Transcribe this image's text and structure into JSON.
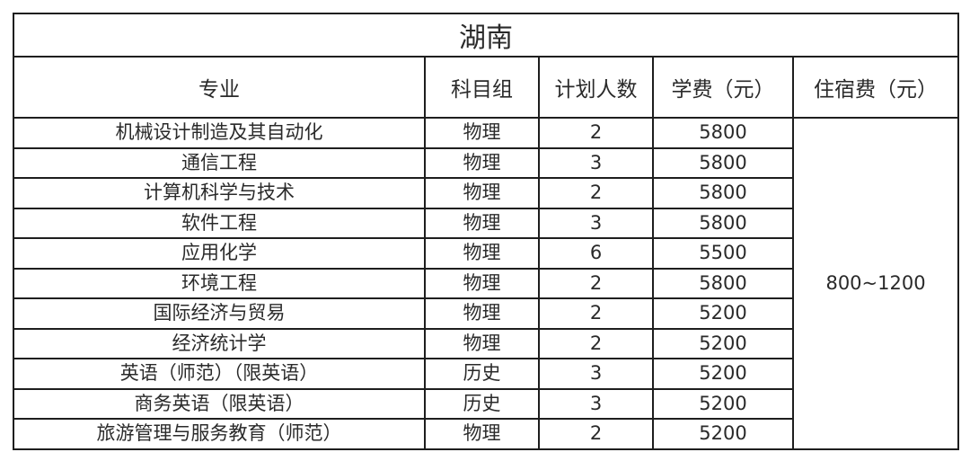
{
  "title": "湖南",
  "headers": [
    "专业",
    "科目组",
    "计划人数",
    "学费（元）",
    "住宿费（元）"
  ],
  "accommodation_fee": "800~1200",
  "rows": [
    {
      "major": "机械设计制造及其自动化",
      "subject": "物理",
      "plan": "2",
      "tuition": "5800"
    },
    {
      "major": "通信工程",
      "subject": "物理",
      "plan": "3",
      "tuition": "5800"
    },
    {
      "major": "计算机科学与技术",
      "subject": "物理",
      "plan": "2",
      "tuition": "5800"
    },
    {
      "major": "软件工程",
      "subject": "物理",
      "plan": "3",
      "tuition": "5800"
    },
    {
      "major": "应用化学",
      "subject": "物理",
      "plan": "6",
      "tuition": "5500"
    },
    {
      "major": "环境工程",
      "subject": "物理",
      "plan": "2",
      "tuition": "5800"
    },
    {
      "major": "国际经济与贸易",
      "subject": "物理",
      "plan": "2",
      "tuition": "5200"
    },
    {
      "major": "经济统计学",
      "subject": "物理",
      "plan": "2",
      "tuition": "5200"
    },
    {
      "major": "英语（师范）（限英语）",
      "subject": "历史",
      "plan": "3",
      "tuition": "5200"
    },
    {
      "major": "商务英语（限英语）",
      "subject": "历史",
      "plan": "3",
      "tuition": "5200"
    },
    {
      "major": "旅游管理与服务教育（师范）",
      "subject": "物理",
      "plan": "2",
      "tuition": "5200"
    }
  ]
}
